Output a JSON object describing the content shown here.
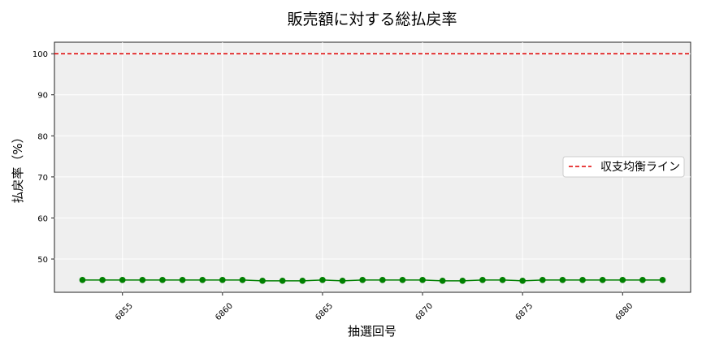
{
  "chart_data": {
    "type": "line",
    "title": "販売額に対する総払戻率",
    "xlabel": "抽選回号",
    "ylabel": "払戻率（%）",
    "xlim": [
      6851.6,
      6883.4
    ],
    "ylim": [
      41.9,
      102.8
    ],
    "xticks": [
      6855,
      6860,
      6865,
      6870,
      6875,
      6880
    ],
    "yticks": [
      50,
      60,
      70,
      80,
      90,
      100
    ],
    "grid": true,
    "legend_position": "right",
    "x": [
      6853,
      6854,
      6855,
      6856,
      6857,
      6858,
      6859,
      6860,
      6861,
      6862,
      6863,
      6864,
      6865,
      6866,
      6867,
      6868,
      6869,
      6870,
      6871,
      6872,
      6873,
      6874,
      6875,
      6876,
      6877,
      6878,
      6879,
      6880,
      6881,
      6882
    ],
    "series": [
      {
        "values": [
          44.9,
          44.9,
          44.9,
          44.9,
          44.9,
          44.9,
          44.9,
          44.9,
          44.9,
          44.7,
          44.7,
          44.7,
          44.9,
          44.7,
          44.9,
          44.9,
          44.9,
          44.9,
          44.7,
          44.7,
          44.9,
          44.9,
          44.7,
          44.9,
          44.9,
          44.9,
          44.9,
          44.9,
          44.9,
          44.9
        ],
        "color": "#008000"
      }
    ],
    "reference_line": {
      "name": "収支均衡ライン",
      "value": 100,
      "color": "#e00000",
      "style": "dashed"
    }
  }
}
